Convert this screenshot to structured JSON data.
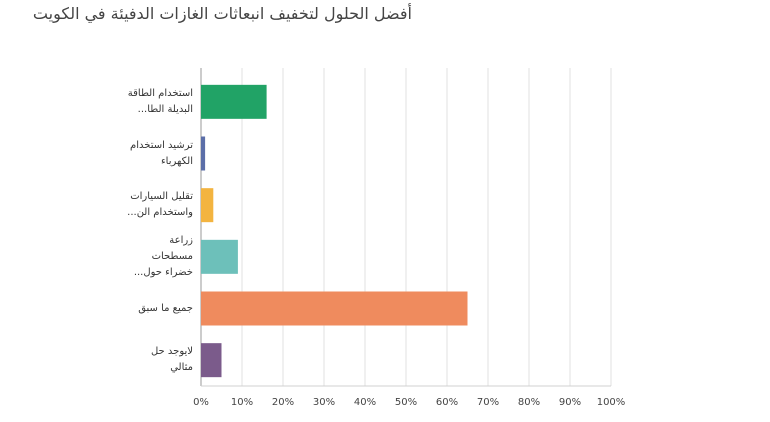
{
  "chart_data": {
    "type": "bar",
    "orientation": "horizontal",
    "title": "أفضل الحلول لتخفيف انبعاثات الغازات الدفيئة في الكويت",
    "categories": [
      "استخدام الطاقة البديلة الطا...",
      "ترشيد استخدام الكهرباء",
      "تقليل السيارات واستخدام الن...",
      "زراعة مسطحات خضراء حول...",
      "جميع ما سبق",
      "لايوجد حل مثالي"
    ],
    "values": [
      16,
      1,
      3,
      9,
      65,
      5
    ],
    "colors": [
      "#21a366",
      "#5b6ea8",
      "#f3b440",
      "#6dc0ba",
      "#ef8b5e",
      "#7b5b8b"
    ],
    "xlim": [
      0,
      100
    ],
    "xticks": [
      {
        "value": 0,
        "label": "0%"
      },
      {
        "value": 10,
        "label": "10%"
      },
      {
        "value": 20,
        "label": "20%"
      },
      {
        "value": 30,
        "label": "30%"
      },
      {
        "value": 40,
        "label": "40%"
      },
      {
        "value": 50,
        "label": "50%"
      },
      {
        "value": 60,
        "label": "60%"
      },
      {
        "value": 70,
        "label": "70%"
      },
      {
        "value": 80,
        "label": "80%"
      },
      {
        "value": 90,
        "label": "90%"
      },
      {
        "value": 100,
        "label": "100%"
      }
    ],
    "grid": true
  }
}
